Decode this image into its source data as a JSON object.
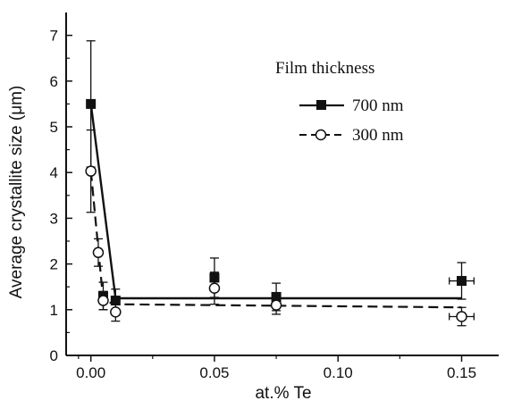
{
  "chart_data": {
    "type": "scatter",
    "xlabel": "at.% Te",
    "ylabel": "Average crystallite size (μm)",
    "xlim": [
      -0.01,
      0.165
    ],
    "ylim": [
      0,
      7.5
    ],
    "x_ticks": [
      0.0,
      0.05,
      0.1,
      0.15
    ],
    "x_tick_labels": [
      "0.00",
      "0.05",
      "0.10",
      "0.15"
    ],
    "y_ticks": [
      0,
      1,
      2,
      3,
      4,
      5,
      6,
      7
    ],
    "y_tick_labels": [
      "0",
      "1",
      "2",
      "3",
      "4",
      "5",
      "6",
      "7"
    ],
    "grid": false,
    "legend_title": "Film thickness",
    "legend_position": "top-right",
    "series": [
      {
        "name": "700 nm",
        "marker": "filled-square",
        "line_style": "solid",
        "color": "#111111",
        "points": [
          {
            "x": 0.0,
            "y": 5.5,
            "yerr": 1.38
          },
          {
            "x": 0.005,
            "y": 1.3,
            "yerr": 0.3
          },
          {
            "x": 0.01,
            "y": 1.2,
            "yerr": 0.25
          },
          {
            "x": 0.05,
            "y": 1.7,
            "yerr": 0.43
          },
          {
            "x": 0.075,
            "y": 1.28,
            "yerr": 0.3
          },
          {
            "x": 0.15,
            "y": 1.63,
            "yerr": 0.4,
            "xerr": 0.005
          }
        ],
        "fit_line": [
          [
            0.0,
            5.5
          ],
          [
            0.01,
            1.25
          ],
          [
            0.15,
            1.25
          ]
        ]
      },
      {
        "name": "300 nm",
        "marker": "open-circle",
        "line_style": "dashed",
        "color": "#111111",
        "points": [
          {
            "x": 0.0,
            "y": 4.03,
            "yerr": 0.9
          },
          {
            "x": 0.003,
            "y": 2.25,
            "yerr": 0.3
          },
          {
            "x": 0.005,
            "y": 1.2,
            "yerr": 0.2
          },
          {
            "x": 0.01,
            "y": 0.95,
            "yerr": 0.2
          },
          {
            "x": 0.05,
            "y": 1.47,
            "yerr": 0.35
          },
          {
            "x": 0.075,
            "y": 1.1,
            "yerr": 0.2
          },
          {
            "x": 0.15,
            "y": 0.85,
            "yerr": 0.2,
            "xerr": 0.005
          }
        ],
        "fit_line": [
          [
            0.0,
            4.03
          ],
          [
            0.005,
            1.2
          ],
          [
            0.01,
            1.12
          ],
          [
            0.15,
            1.05
          ]
        ]
      }
    ]
  }
}
